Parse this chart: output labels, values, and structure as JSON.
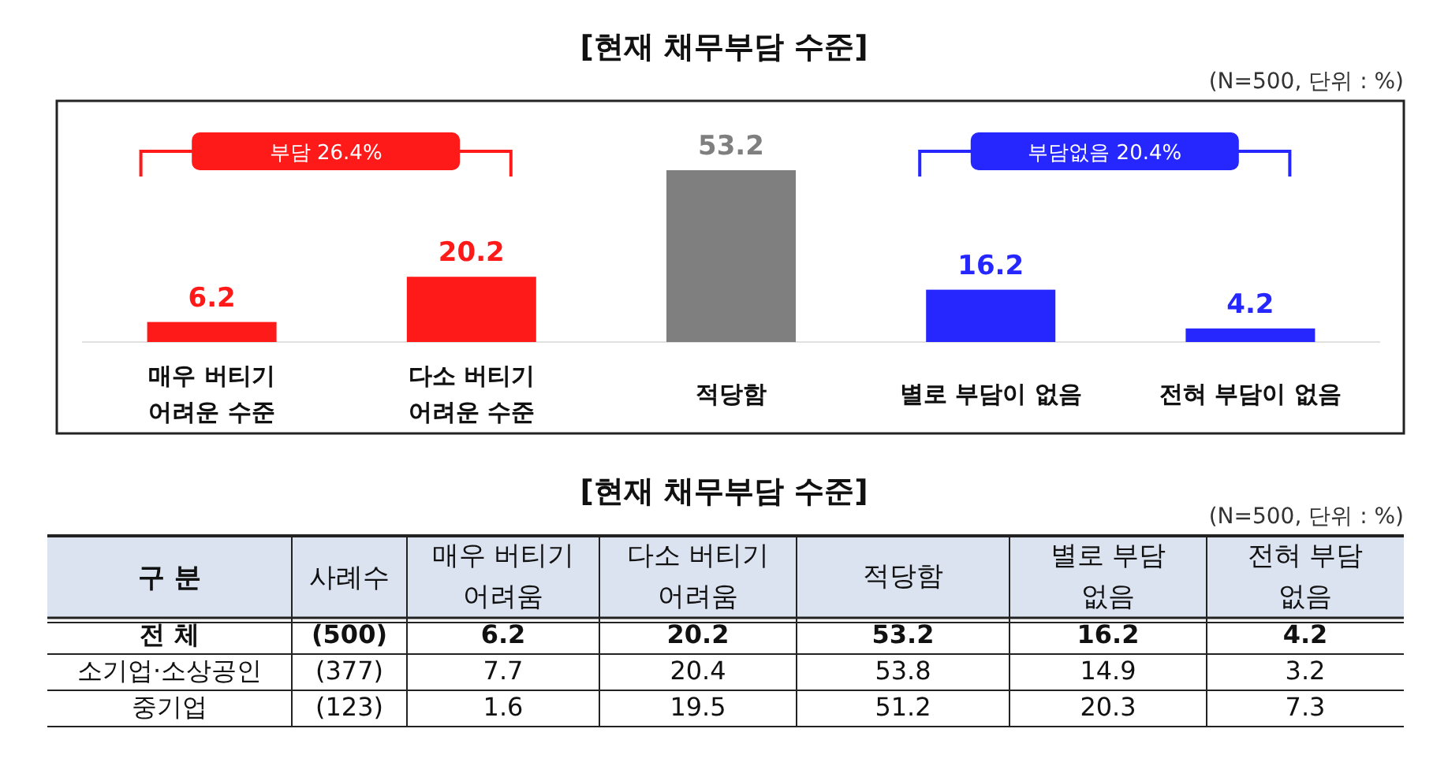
{
  "chart_data": [
    {
      "type": "bar",
      "title": "[현재 채무부담 수준]",
      "annotations": [
        "(N=500, 단위 : %)",
        "부담 26.4%",
        "부담없음 20.4%"
      ],
      "categories": [
        "매우 버티기 어려운 수준",
        "다소 버티기 어려운 수준",
        "적당함",
        "별로 부담이 없음",
        "전혀 부담이 없음"
      ],
      "values": [
        6.2,
        20.2,
        53.2,
        16.2,
        4.2
      ],
      "colors": [
        "#ff1a1a",
        "#ff1a1a",
        "#7f7f7f",
        "#2626ff",
        "#2626ff"
      ],
      "data_labels": true
    },
    {
      "type": "heatmap",
      "title": "[현재 채무부담 수준]",
      "annotations": [
        "(N=500, 단위 : %)"
      ],
      "ylabel": "구 분",
      "y2label": "사례수",
      "categories": [
        "매우 버티기 어려움",
        "다소 버티기 어려움",
        "적당함",
        "별로 부담 없음",
        "전혀 부담 없음"
      ],
      "y_categories": [
        "전 체",
        "소기업·소상공인",
        "중기업"
      ],
      "y2_categories": [
        "(500)",
        "(377)",
        "(123)"
      ],
      "data_labels": true,
      "cells": [
        [
          6.2,
          20.2,
          53.2,
          16.2,
          4.2
        ],
        [
          7.7,
          20.4,
          53.8,
          14.9,
          3.2
        ],
        [
          1.6,
          19.5,
          51.2,
          20.3,
          7.3
        ]
      ]
    }
  ]
}
